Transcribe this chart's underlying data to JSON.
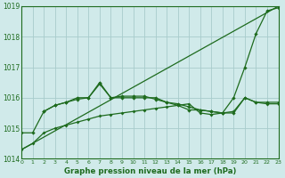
{
  "xlabel": "Graphe pression niveau de la mer (hPa)",
  "xlim": [
    0,
    23
  ],
  "ylim": [
    1014,
    1019
  ],
  "yticks": [
    1014,
    1015,
    1016,
    1017,
    1018,
    1019
  ],
  "xticks": [
    0,
    1,
    2,
    3,
    4,
    5,
    6,
    7,
    8,
    9,
    10,
    11,
    12,
    13,
    14,
    15,
    16,
    17,
    18,
    19,
    20,
    21,
    22,
    23
  ],
  "background_color": "#d0eaea",
  "grid_color": "#a8cccc",
  "line_color": "#1e6b1e",
  "line_diagonal": {
    "x": [
      0,
      23
    ],
    "y": [
      1014.3,
      1019.0
    ]
  },
  "line_top": {
    "x": [
      0,
      1,
      2,
      3,
      4,
      5,
      6,
      7,
      8,
      9,
      10,
      11,
      12,
      13,
      14,
      15,
      16,
      17,
      18,
      19,
      20,
      21,
      22,
      23
    ],
    "y": [
      1014.85,
      1014.85,
      1015.55,
      1015.75,
      1015.85,
      1016.0,
      1016.0,
      1016.5,
      1016.0,
      1016.05,
      1016.05,
      1016.05,
      1015.95,
      1015.85,
      1015.8,
      1015.7,
      1015.6,
      1015.55,
      1015.5,
      1016.0,
      1017.0,
      1018.1,
      1018.85,
      1018.95
    ]
  },
  "line_mid": {
    "x": [
      2,
      3,
      4,
      5,
      6,
      7,
      8,
      9,
      10,
      11,
      12,
      13,
      14,
      15,
      16,
      17,
      18,
      19,
      20,
      21,
      22,
      23
    ],
    "y": [
      1015.55,
      1015.75,
      1015.85,
      1015.95,
      1016.0,
      1016.45,
      1016.0,
      1016.0,
      1016.0,
      1016.0,
      1016.0,
      1015.85,
      1015.75,
      1015.6,
      1015.6,
      1015.55,
      1015.5,
      1015.5,
      1016.0,
      1015.85,
      1015.85,
      1015.85
    ]
  },
  "line_low": {
    "x": [
      0,
      1,
      2,
      3,
      4,
      5,
      6,
      7,
      8,
      9,
      10,
      11,
      12,
      13,
      14,
      15,
      16,
      17,
      18,
      19,
      20,
      21,
      22,
      23
    ],
    "y": [
      1014.3,
      1014.5,
      1014.85,
      1015.0,
      1015.1,
      1015.2,
      1015.3,
      1015.4,
      1015.45,
      1015.5,
      1015.55,
      1015.6,
      1015.65,
      1015.7,
      1015.75,
      1015.8,
      1015.5,
      1015.45,
      1015.5,
      1015.55,
      1016.0,
      1015.85,
      1015.8,
      1015.8
    ]
  }
}
